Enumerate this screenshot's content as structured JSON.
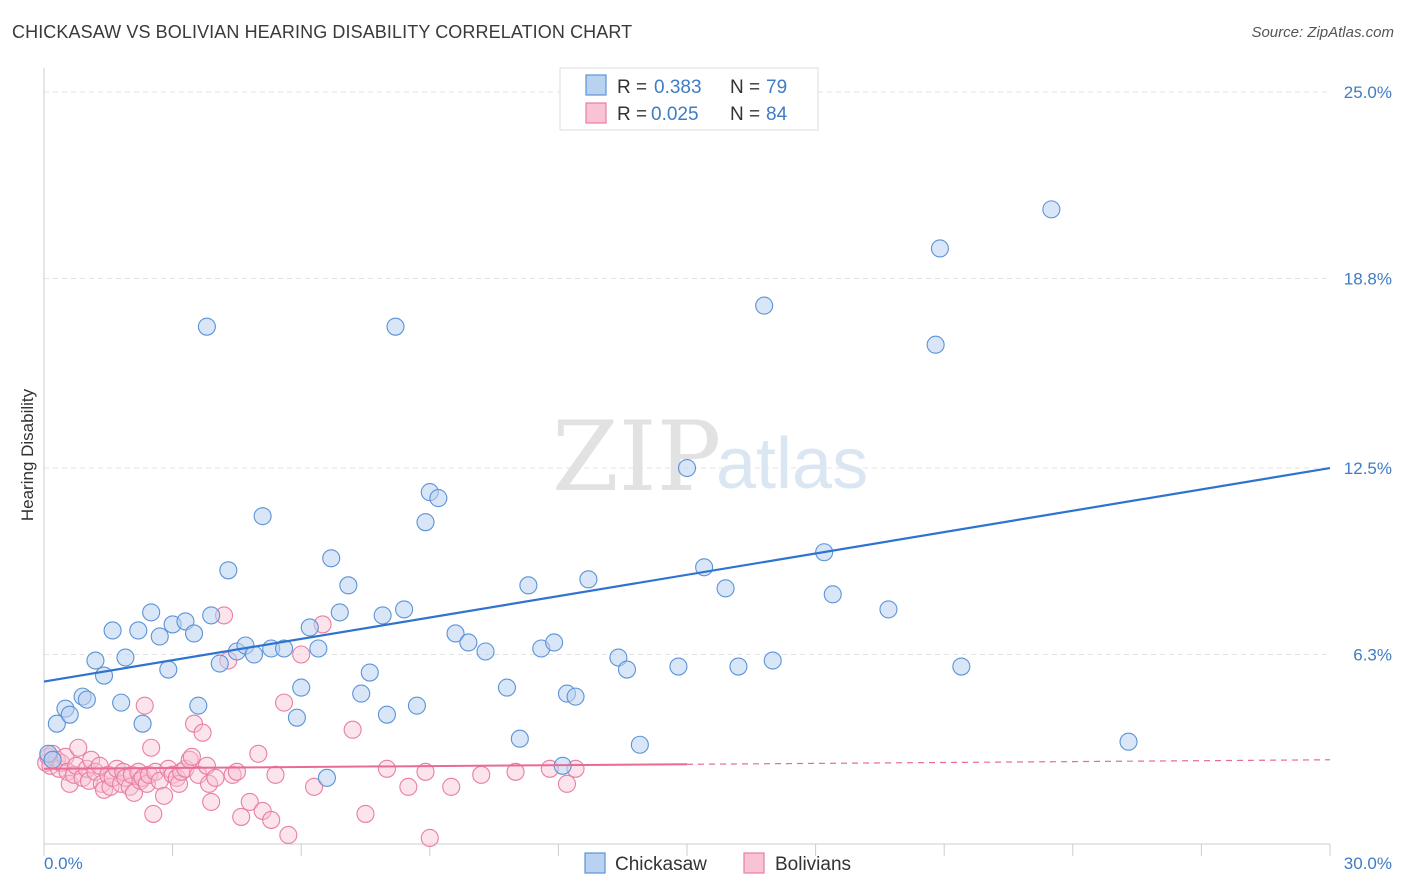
{
  "title": "CHICKASAW VS BOLIVIAN HEARING DISABILITY CORRELATION CHART",
  "source": "Source: ZipAtlas.com",
  "watermark": {
    "zip": "ZIP",
    "atlas": "atlas"
  },
  "legend": {
    "r_label": "R =",
    "n_label": "N =",
    "rows": [
      {
        "name": "Chickasaw",
        "r": "0.383",
        "n": "79"
      },
      {
        "name": "Bolivians",
        "r": "0.025",
        "n": "84"
      }
    ]
  },
  "colors": {
    "blue_fill": "#b9d2f0",
    "blue_stroke": "#5b93d8",
    "blue_line": "#2f73d0",
    "pink_fill": "#f8c3d4",
    "pink_stroke": "#e87fa0",
    "pink_line": "#e86b93",
    "grid": "#e3e3e3",
    "axis_text": "#3e7cc4"
  },
  "chart_data": {
    "type": "scatter",
    "title": "CHICKASAW VS BOLIVIAN HEARING DISABILITY CORRELATION CHART",
    "xlabel": "",
    "ylabel": "Hearing Disability",
    "xlim": [
      0,
      30
    ],
    "ylim": [
      0,
      25.8
    ],
    "x_tick_labels": [
      "0.0%",
      "30.0%"
    ],
    "y_ticks": [
      6.3,
      12.5,
      18.8,
      25.0
    ],
    "y_tick_labels": [
      "6.3%",
      "12.5%",
      "18.8%",
      "25.0%"
    ],
    "grid": true,
    "legend_position": "top-center",
    "series": [
      {
        "name": "Chickasaw",
        "r": 0.383,
        "n": 79,
        "trend": {
          "x": [
            0,
            30
          ],
          "y": [
            5.4,
            12.5
          ],
          "dashed_from": null
        },
        "points": [
          [
            0.1,
            3.0
          ],
          [
            0.2,
            2.8
          ],
          [
            0.3,
            4.0
          ],
          [
            0.5,
            4.5
          ],
          [
            0.6,
            4.3
          ],
          [
            0.9,
            4.9
          ],
          [
            1.0,
            4.8
          ],
          [
            1.2,
            6.1
          ],
          [
            1.4,
            5.6
          ],
          [
            1.6,
            7.1
          ],
          [
            1.8,
            4.7
          ],
          [
            1.9,
            6.2
          ],
          [
            2.2,
            7.1
          ],
          [
            2.3,
            4.0
          ],
          [
            2.5,
            7.7
          ],
          [
            2.7,
            6.9
          ],
          [
            2.9,
            5.8
          ],
          [
            3.0,
            7.3
          ],
          [
            3.3,
            7.4
          ],
          [
            3.5,
            7.0
          ],
          [
            3.6,
            4.6
          ],
          [
            3.8,
            17.2
          ],
          [
            3.9,
            7.6
          ],
          [
            4.1,
            6.0
          ],
          [
            4.3,
            9.1
          ],
          [
            4.5,
            6.4
          ],
          [
            4.7,
            6.6
          ],
          [
            4.9,
            6.3
          ],
          [
            5.1,
            10.9
          ],
          [
            5.3,
            6.5
          ],
          [
            5.6,
            6.5
          ],
          [
            5.9,
            4.2
          ],
          [
            6.0,
            5.2
          ],
          [
            6.2,
            7.2
          ],
          [
            6.4,
            6.5
          ],
          [
            6.6,
            2.2
          ],
          [
            6.7,
            9.5
          ],
          [
            6.9,
            7.7
          ],
          [
            7.1,
            8.6
          ],
          [
            7.4,
            5.0
          ],
          [
            7.6,
            5.7
          ],
          [
            7.9,
            7.6
          ],
          [
            8.0,
            4.3
          ],
          [
            8.2,
            17.2
          ],
          [
            8.4,
            7.8
          ],
          [
            8.7,
            4.6
          ],
          [
            8.9,
            10.7
          ],
          [
            9.0,
            11.7
          ],
          [
            9.2,
            11.5
          ],
          [
            9.6,
            7.0
          ],
          [
            9.9,
            6.7
          ],
          [
            10.3,
            6.4
          ],
          [
            10.8,
            5.2
          ],
          [
            11.1,
            3.5
          ],
          [
            11.3,
            8.6
          ],
          [
            11.6,
            6.5
          ],
          [
            11.9,
            6.7
          ],
          [
            12.1,
            2.6
          ],
          [
            12.2,
            5.0
          ],
          [
            12.4,
            4.9
          ],
          [
            12.7,
            8.8
          ],
          [
            13.4,
            6.2
          ],
          [
            13.6,
            5.8
          ],
          [
            13.9,
            3.3
          ],
          [
            14.8,
            5.9
          ],
          [
            15.0,
            12.5
          ],
          [
            15.4,
            9.2
          ],
          [
            15.9,
            8.5
          ],
          [
            16.2,
            5.9
          ],
          [
            16.8,
            17.9
          ],
          [
            17.0,
            6.1
          ],
          [
            18.2,
            9.7
          ],
          [
            18.4,
            8.3
          ],
          [
            19.7,
            7.8
          ],
          [
            20.8,
            16.6
          ],
          [
            20.9,
            19.8
          ],
          [
            21.4,
            5.9
          ],
          [
            23.5,
            21.1
          ],
          [
            25.3,
            3.4
          ]
        ]
      },
      {
        "name": "Bolivians",
        "r": 0.025,
        "n": 84,
        "trend": {
          "x": [
            0,
            30
          ],
          "y": [
            2.5,
            2.8
          ],
          "dashed_from": 15
        },
        "points": [
          [
            0.05,
            2.7
          ],
          [
            0.1,
            2.9
          ],
          [
            0.15,
            2.6
          ],
          [
            0.2,
            3.0
          ],
          [
            0.3,
            2.8
          ],
          [
            0.35,
            2.5
          ],
          [
            0.4,
            2.7
          ],
          [
            0.5,
            2.9
          ],
          [
            0.55,
            2.4
          ],
          [
            0.6,
            2.0
          ],
          [
            0.7,
            2.3
          ],
          [
            0.75,
            2.6
          ],
          [
            0.8,
            3.2
          ],
          [
            0.9,
            2.2
          ],
          [
            1.0,
            2.5
          ],
          [
            1.05,
            2.1
          ],
          [
            1.1,
            2.8
          ],
          [
            1.2,
            2.4
          ],
          [
            1.3,
            2.6
          ],
          [
            1.35,
            2.0
          ],
          [
            1.4,
            1.8
          ],
          [
            1.5,
            2.3
          ],
          [
            1.55,
            1.9
          ],
          [
            1.6,
            2.2
          ],
          [
            1.7,
            2.5
          ],
          [
            1.8,
            2.0
          ],
          [
            1.85,
            2.4
          ],
          [
            1.9,
            2.2
          ],
          [
            2.0,
            1.9
          ],
          [
            2.05,
            2.3
          ],
          [
            2.1,
            1.7
          ],
          [
            2.2,
            2.4
          ],
          [
            2.25,
            2.1
          ],
          [
            2.3,
            2.2
          ],
          [
            2.35,
            4.6
          ],
          [
            2.4,
            2.0
          ],
          [
            2.45,
            2.3
          ],
          [
            2.5,
            3.2
          ],
          [
            2.55,
            1.0
          ],
          [
            2.6,
            2.4
          ],
          [
            2.7,
            2.1
          ],
          [
            2.8,
            1.6
          ],
          [
            2.9,
            2.5
          ],
          [
            3.0,
            2.3
          ],
          [
            3.1,
            2.2
          ],
          [
            3.15,
            2.0
          ],
          [
            3.2,
            2.4
          ],
          [
            3.3,
            2.5
          ],
          [
            3.4,
            2.8
          ],
          [
            3.45,
            2.9
          ],
          [
            3.5,
            4.0
          ],
          [
            3.6,
            2.3
          ],
          [
            3.7,
            3.7
          ],
          [
            3.8,
            2.6
          ],
          [
            3.85,
            2.0
          ],
          [
            3.9,
            1.4
          ],
          [
            4.0,
            2.2
          ],
          [
            4.2,
            7.6
          ],
          [
            4.3,
            6.1
          ],
          [
            4.4,
            2.3
          ],
          [
            4.5,
            2.4
          ],
          [
            4.6,
            0.9
          ],
          [
            4.8,
            1.4
          ],
          [
            5.0,
            3.0
          ],
          [
            5.1,
            1.1
          ],
          [
            5.3,
            0.8
          ],
          [
            5.4,
            2.3
          ],
          [
            5.6,
            4.7
          ],
          [
            5.7,
            0.3
          ],
          [
            6.0,
            6.3
          ],
          [
            6.3,
            1.9
          ],
          [
            6.5,
            7.3
          ],
          [
            7.2,
            3.8
          ],
          [
            7.5,
            1.0
          ],
          [
            8.0,
            2.5
          ],
          [
            8.5,
            1.9
          ],
          [
            8.9,
            2.4
          ],
          [
            9.0,
            0.2
          ],
          [
            9.5,
            1.9
          ],
          [
            10.2,
            2.3
          ],
          [
            11.0,
            2.4
          ],
          [
            11.8,
            2.5
          ],
          [
            12.2,
            2.0
          ],
          [
            12.4,
            2.5
          ]
        ]
      }
    ]
  }
}
